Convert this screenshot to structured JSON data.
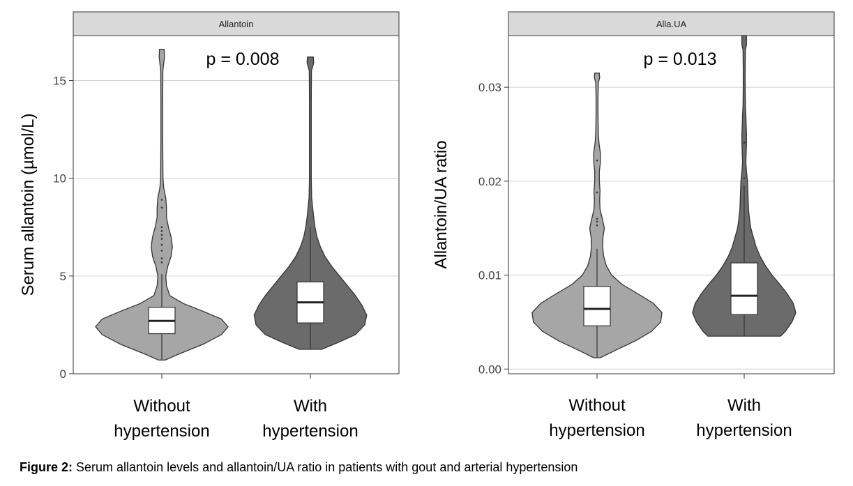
{
  "chart_data": [
    {
      "type": "violin",
      "title": "Allantoin",
      "ylabel": "Serum allantoin (µmol/L)",
      "xlabel": "",
      "ylim": [
        0,
        17.3
      ],
      "yticks": [
        0,
        5,
        10,
        15
      ],
      "grid": true,
      "annotation": "p = 0.008",
      "colors": [
        "#a6a6a6",
        "#6b6b6b"
      ],
      "categories": [
        {
          "label_lines": [
            "Without",
            "hypertension"
          ],
          "min": 0.7,
          "max": 16.6,
          "box": {
            "q1": 2.05,
            "median": 2.7,
            "q3": 3.4,
            "whisker_low": 0.7,
            "whisker_high": 5.1
          },
          "density": [
            [
              0.7,
              0.05
            ],
            [
              1.0,
              0.25
            ],
            [
              1.5,
              0.62
            ],
            [
              2.0,
              0.9
            ],
            [
              2.4,
              1.0
            ],
            [
              2.8,
              0.9
            ],
            [
              3.2,
              0.62
            ],
            [
              3.6,
              0.32
            ],
            [
              4.0,
              0.12
            ],
            [
              4.5,
              0.07
            ],
            [
              5.0,
              0.06
            ],
            [
              5.5,
              0.09
            ],
            [
              6.0,
              0.14
            ],
            [
              6.5,
              0.16
            ],
            [
              7.0,
              0.14
            ],
            [
              7.5,
              0.1
            ],
            [
              8.0,
              0.07
            ],
            [
              8.5,
              0.07
            ],
            [
              9.0,
              0.06
            ],
            [
              9.5,
              0.03
            ],
            [
              10.0,
              0.018
            ],
            [
              12.0,
              0.014
            ],
            [
              14.0,
              0.014
            ],
            [
              15.5,
              0.016
            ],
            [
              16.2,
              0.04
            ],
            [
              16.6,
              0.035
            ]
          ],
          "outliers": [
            5.7,
            5.9,
            6.3,
            6.6,
            6.9,
            7.1,
            7.3,
            7.5,
            8.5,
            8.9
          ]
        },
        {
          "label_lines": [
            "With",
            "hypertension"
          ],
          "min": 1.25,
          "max": 16.2,
          "box": {
            "q1": 2.6,
            "median": 3.65,
            "q3": 4.7,
            "whisker_low": 1.25,
            "whisker_high": 7.5
          },
          "density": [
            [
              1.25,
              0.17
            ],
            [
              1.6,
              0.42
            ],
            [
              2.0,
              0.68
            ],
            [
              2.5,
              0.82
            ],
            [
              3.0,
              0.85
            ],
            [
              3.5,
              0.78
            ],
            [
              4.0,
              0.68
            ],
            [
              4.5,
              0.56
            ],
            [
              5.0,
              0.44
            ],
            [
              5.5,
              0.32
            ],
            [
              6.0,
              0.22
            ],
            [
              6.5,
              0.15
            ],
            [
              7.0,
              0.1
            ],
            [
              7.5,
              0.07
            ],
            [
              8.0,
              0.05
            ],
            [
              8.5,
              0.035
            ],
            [
              9.0,
              0.02
            ],
            [
              10.0,
              0.014
            ],
            [
              12.0,
              0.014
            ],
            [
              14.0,
              0.014
            ],
            [
              15.5,
              0.017
            ],
            [
              15.9,
              0.05
            ],
            [
              16.2,
              0.045
            ]
          ],
          "outliers": []
        }
      ]
    },
    {
      "type": "violin",
      "title": "Alla.UA",
      "ylabel": "Allantoin/UA ratio",
      "xlabel": "",
      "ylim": [
        -0.0005,
        0.0355
      ],
      "yticks": [
        0.0,
        0.01,
        0.02,
        0.03
      ],
      "ytick_labels": [
        "0.00",
        "0.01",
        "0.02",
        "0.03"
      ],
      "grid": true,
      "annotation": "p = 0.013",
      "colors": [
        "#a6a6a6",
        "#6b6b6b"
      ],
      "categories": [
        {
          "label_lines": [
            "Without",
            "hypertension"
          ],
          "min": 0.0012,
          "max": 0.0315,
          "box": {
            "q1": 0.0046,
            "median": 0.0064,
            "q3": 0.0088,
            "whisker_low": 0.0012,
            "whisker_high": 0.0128
          },
          "density": [
            [
              0.0012,
              0.05
            ],
            [
              0.002,
              0.28
            ],
            [
              0.003,
              0.58
            ],
            [
              0.004,
              0.82
            ],
            [
              0.005,
              0.96
            ],
            [
              0.006,
              0.98
            ],
            [
              0.007,
              0.85
            ],
            [
              0.008,
              0.62
            ],
            [
              0.009,
              0.38
            ],
            [
              0.01,
              0.22
            ],
            [
              0.011,
              0.14
            ],
            [
              0.012,
              0.1
            ],
            [
              0.013,
              0.085
            ],
            [
              0.014,
              0.09
            ],
            [
              0.015,
              0.11
            ],
            [
              0.016,
              0.08
            ],
            [
              0.017,
              0.045
            ],
            [
              0.018,
              0.04
            ],
            [
              0.019,
              0.045
            ],
            [
              0.02,
              0.035
            ],
            [
              0.021,
              0.035
            ],
            [
              0.022,
              0.05
            ],
            [
              0.023,
              0.05
            ],
            [
              0.024,
              0.03
            ],
            [
              0.025,
              0.02
            ],
            [
              0.027,
              0.015
            ],
            [
              0.029,
              0.015
            ],
            [
              0.0305,
              0.02
            ],
            [
              0.031,
              0.04
            ],
            [
              0.0315,
              0.035
            ]
          ],
          "outliers": [
            0.0153,
            0.0157,
            0.016,
            0.0188,
            0.0222
          ]
        },
        {
          "label_lines": [
            "With",
            "hypertension"
          ],
          "min": 0.0035,
          "max": 0.0355,
          "box": {
            "q1": 0.0058,
            "median": 0.0078,
            "q3": 0.0113,
            "whisker_low": 0.0035,
            "whisker_high": 0.0195
          },
          "density": [
            [
              0.0035,
              0.55
            ],
            [
              0.004,
              0.62
            ],
            [
              0.005,
              0.72
            ],
            [
              0.006,
              0.78
            ],
            [
              0.007,
              0.74
            ],
            [
              0.008,
              0.65
            ],
            [
              0.009,
              0.54
            ],
            [
              0.01,
              0.42
            ],
            [
              0.011,
              0.32
            ],
            [
              0.012,
              0.24
            ],
            [
              0.013,
              0.18
            ],
            [
              0.014,
              0.14
            ],
            [
              0.015,
              0.1
            ],
            [
              0.016,
              0.08
            ],
            [
              0.017,
              0.065
            ],
            [
              0.018,
              0.06
            ],
            [
              0.019,
              0.055
            ],
            [
              0.02,
              0.05
            ],
            [
              0.021,
              0.035
            ],
            [
              0.022,
              0.025
            ],
            [
              0.023,
              0.03
            ],
            [
              0.024,
              0.035
            ],
            [
              0.025,
              0.035
            ],
            [
              0.026,
              0.03
            ],
            [
              0.027,
              0.025
            ],
            [
              0.028,
              0.018
            ],
            [
              0.03,
              0.015
            ],
            [
              0.032,
              0.015
            ],
            [
              0.034,
              0.018
            ],
            [
              0.0345,
              0.035
            ],
            [
              0.0355,
              0.035
            ]
          ],
          "outliers": [
            0.0203,
            0.0241
          ]
        }
      ]
    }
  ],
  "caption": {
    "label": "Figure 2:",
    "text": " Serum allantoin levels and allantoin/UA ratio in patients with gout and arterial hypertension"
  }
}
